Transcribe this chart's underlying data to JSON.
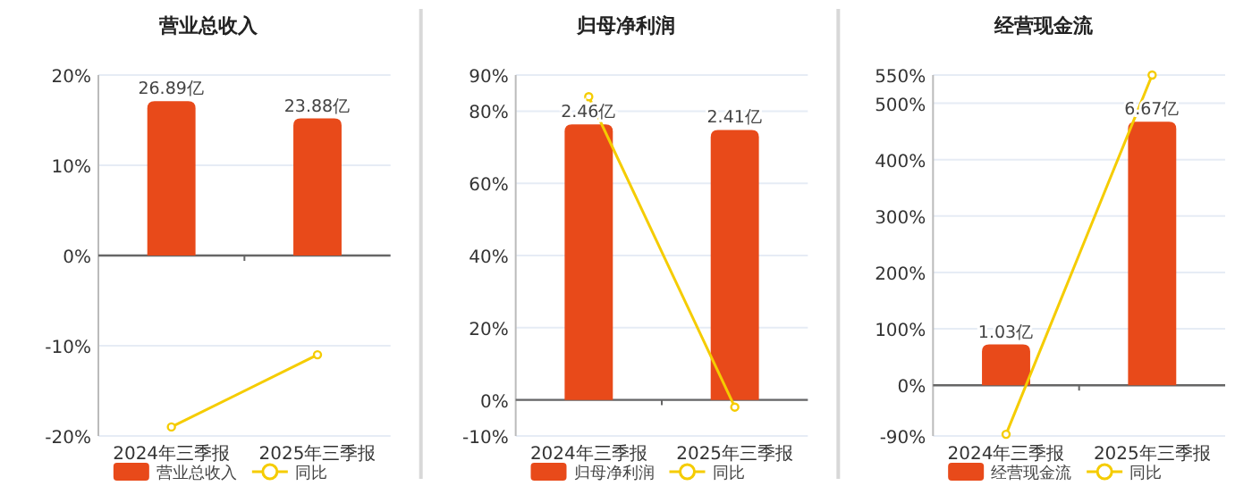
{
  "chart_data": [
    {
      "type": "bar",
      "title": "营业总收入",
      "categories": [
        "2024年三季报",
        "2025年三季报"
      ],
      "ylim": [
        -20,
        20
      ],
      "yticks": [
        {
          "value": 20,
          "label": "20%"
        },
        {
          "value": 10,
          "label": "10%"
        },
        {
          "value": 0,
          "label": "0%"
        },
        {
          "value": -10,
          "label": "-10%"
        },
        {
          "value": -20,
          "label": "-20%"
        }
      ],
      "y2lim": [
        -31.45,
        31.45
      ],
      "grid": "y",
      "legend": "bottom",
      "series": [
        {
          "name": "营业总收入",
          "axis": "y2",
          "color": "#e84a1a",
          "values": [
            26.89,
            23.88
          ],
          "value_labels": [
            "26.89亿",
            "23.88亿"
          ]
        },
        {
          "name": "同比",
          "type": "line",
          "color": "#f5cc00",
          "marker": "circle",
          "values": [
            -19,
            -11
          ]
        }
      ]
    },
    {
      "type": "bar",
      "title": "归母净利润",
      "categories": [
        "2024年三季报",
        "2025年三季报"
      ],
      "ylim": [
        -10,
        90
      ],
      "yticks": [
        {
          "value": 90,
          "label": "90%"
        },
        {
          "value": 80,
          "label": "80%"
        },
        {
          "value": 60,
          "label": "60%"
        },
        {
          "value": 40,
          "label": "40%"
        },
        {
          "value": 20,
          "label": "20%"
        },
        {
          "value": 0,
          "label": "0%"
        },
        {
          "value": -10,
          "label": "-10%"
        }
      ],
      "y2lim": [
        -0.322,
        2.9
      ],
      "grid": "y",
      "legend": "bottom",
      "series": [
        {
          "name": "归母净利润",
          "axis": "y2",
          "color": "#e84a1a",
          "values": [
            2.46,
            2.41
          ],
          "value_labels": [
            "2.46亿",
            "2.41亿"
          ]
        },
        {
          "name": "同比",
          "type": "line",
          "color": "#f5cc00",
          "marker": "circle",
          "values": [
            84,
            -2
          ]
        }
      ]
    },
    {
      "type": "bar",
      "title": "经营现金流",
      "categories": [
        "2024年三季报",
        "2025年三季报"
      ],
      "ylim": [
        -90,
        550
      ],
      "yticks": [
        {
          "value": 550,
          "label": "550%"
        },
        {
          "value": 500,
          "label": "500%"
        },
        {
          "value": 400,
          "label": "400%"
        },
        {
          "value": 300,
          "label": "300%"
        },
        {
          "value": 200,
          "label": "200%"
        },
        {
          "value": 100,
          "label": "100%"
        },
        {
          "value": 0,
          "label": "0%"
        },
        {
          "value": -90,
          "label": "-90%"
        }
      ],
      "y2lim": [
        -1.285,
        7.85
      ],
      "grid": "y",
      "legend": "bottom",
      "series": [
        {
          "name": "经营现金流",
          "axis": "y2",
          "color": "#e84a1a",
          "values": [
            1.03,
            6.67
          ],
          "value_labels": [
            "1.03亿",
            "6.67亿"
          ]
        },
        {
          "name": "同比",
          "type": "line",
          "color": "#f5cc00",
          "marker": "circle",
          "values": [
            -87,
            550
          ]
        }
      ]
    }
  ]
}
